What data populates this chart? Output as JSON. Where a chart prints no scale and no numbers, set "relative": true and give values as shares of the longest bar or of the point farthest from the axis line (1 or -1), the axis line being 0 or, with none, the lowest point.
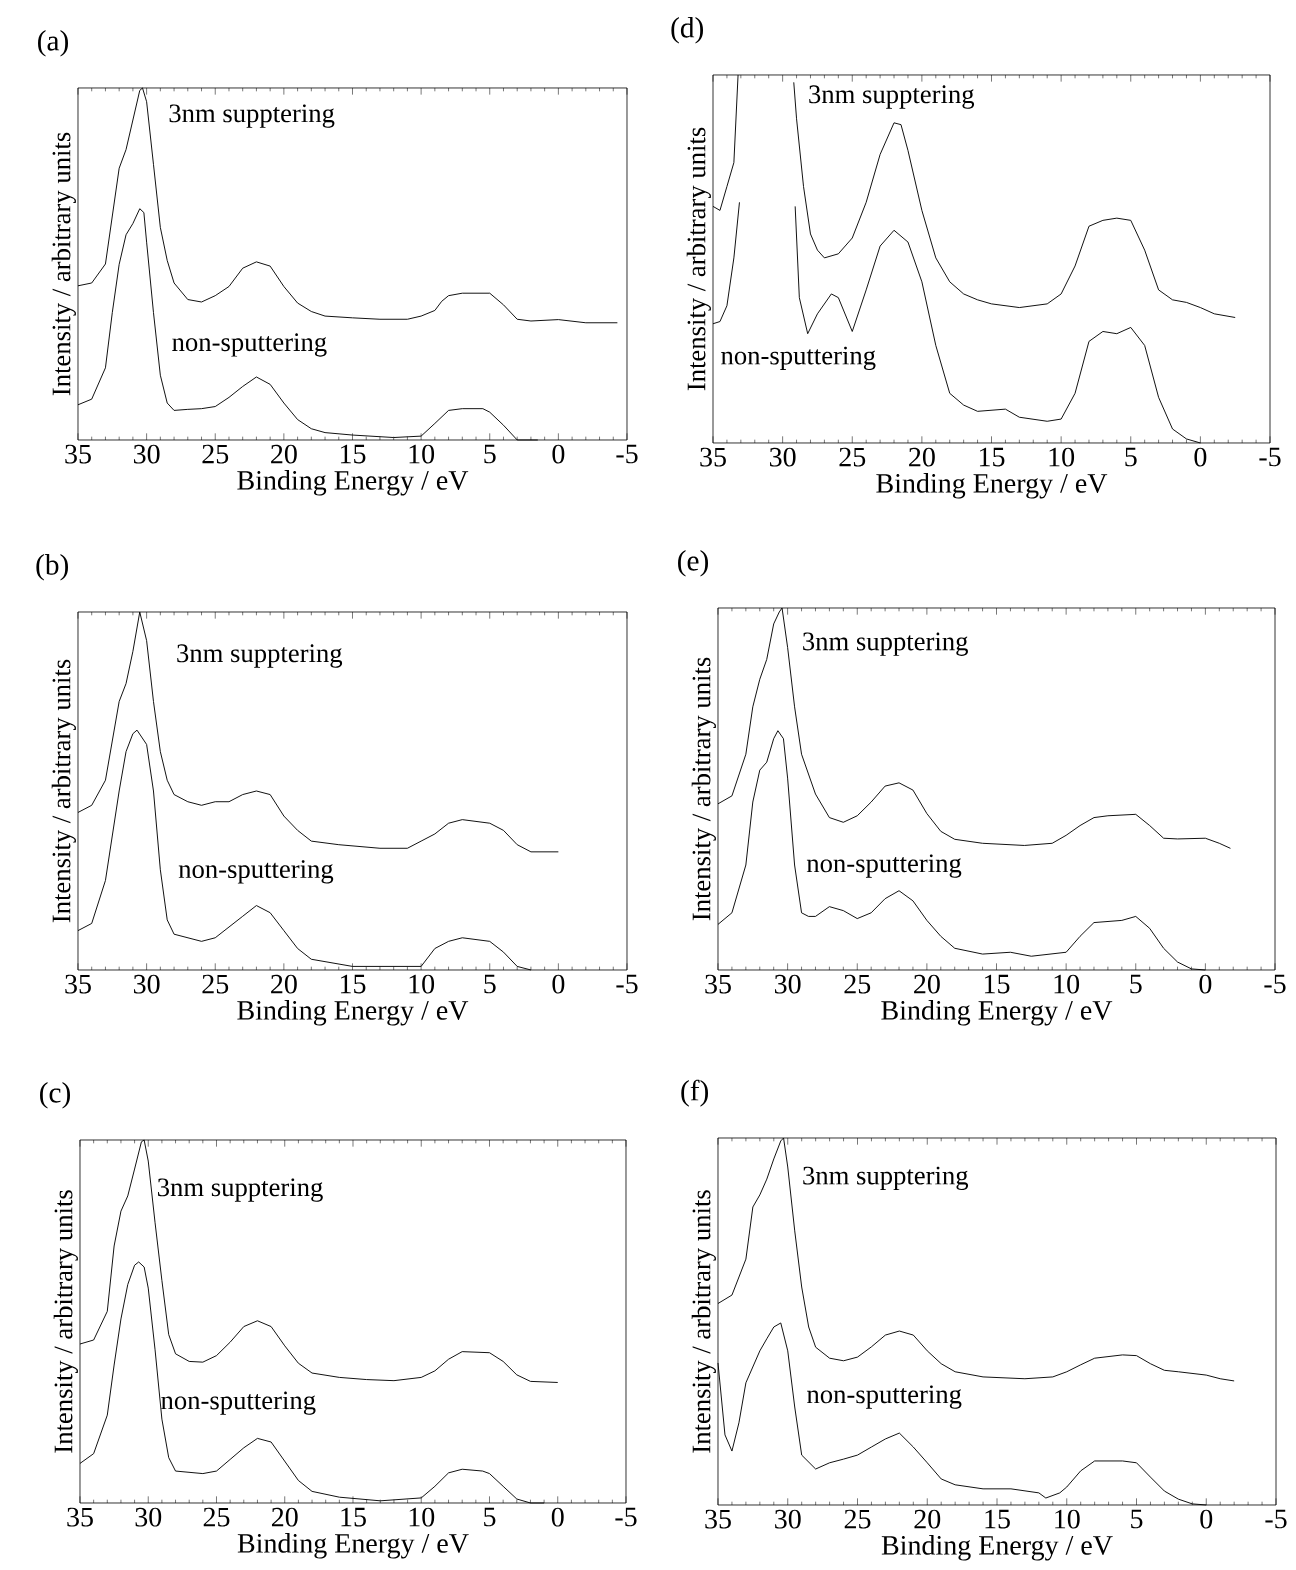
{
  "chart_data": [
    {
      "type": "line",
      "title": "(a)",
      "xlabel": "Binding Energy / eV",
      "ylabel": "Intensity / arbitrary units",
      "relative": true,
      "tick_labels": "x",
      "xlim": [
        35,
        -5
      ],
      "xticks": [
        35,
        30,
        25,
        20,
        15,
        10,
        5,
        0,
        -5
      ],
      "series": [
        {
          "name": "3nm supptering",
          "color": "#000000",
          "x": [
            35,
            34,
            33,
            32,
            31.5,
            31,
            30.5,
            30.3,
            30,
            29.5,
            29,
            28.5,
            28,
            27,
            26,
            25,
            24,
            23,
            22,
            21,
            20,
            19,
            18,
            17,
            15,
            13,
            11,
            10,
            9,
            8.5,
            8,
            7,
            5,
            4,
            3,
            2,
            0,
            -2,
            -4.3
          ],
          "values": [
            0.438,
            0.446,
            0.5,
            0.772,
            0.825,
            0.909,
            0.993,
            1.0,
            0.961,
            0.783,
            0.604,
            0.51,
            0.446,
            0.399,
            0.392,
            0.41,
            0.436,
            0.488,
            0.506,
            0.494,
            0.436,
            0.389,
            0.365,
            0.352,
            0.347,
            0.343,
            0.343,
            0.352,
            0.368,
            0.394,
            0.41,
            0.417,
            0.417,
            0.384,
            0.343,
            0.338,
            0.342,
            0.333,
            0.333
          ]
        },
        {
          "name": "non-sputtering",
          "color": "#000000",
          "x": [
            35,
            34,
            33,
            32.5,
            32,
            31.5,
            31,
            30.5,
            30.2,
            30,
            29.5,
            29,
            28.5,
            28,
            27,
            26,
            25,
            24,
            23,
            22,
            21,
            20,
            19,
            18,
            17,
            15,
            12,
            10,
            9,
            8,
            7,
            5.5,
            5,
            4,
            3,
            1.5
          ],
          "values": [
            0.1,
            0.116,
            0.205,
            0.362,
            0.499,
            0.583,
            0.615,
            0.657,
            0.646,
            0.562,
            0.362,
            0.184,
            0.105,
            0.084,
            0.087,
            0.089,
            0.095,
            0.121,
            0.152,
            0.179,
            0.158,
            0.105,
            0.058,
            0.032,
            0.021,
            0.014,
            0.007,
            0.011,
            0.047,
            0.084,
            0.089,
            0.089,
            0.079,
            0.042,
            0,
            0
          ]
        }
      ]
    },
    {
      "type": "line",
      "title": "(b)",
      "xlabel": "Binding Energy / eV",
      "ylabel": "Intensity / arbitrary units",
      "relative": true,
      "tick_labels": "x",
      "xlim": [
        35,
        -5
      ],
      "xticks": [
        35,
        30,
        25,
        20,
        15,
        10,
        5,
        0,
        -5
      ],
      "series": [
        {
          "name": "3nm supptering",
          "color": "#000000",
          "x": [
            35,
            34,
            33,
            32,
            31.5,
            31,
            30.5,
            30,
            29.5,
            29,
            28.5,
            28,
            27,
            26,
            25,
            24,
            23,
            22,
            21,
            20,
            19,
            18,
            16,
            13,
            11,
            10,
            9,
            8,
            7,
            5,
            4,
            3,
            2,
            0
          ],
          "values": [
            0.44,
            0.46,
            0.53,
            0.75,
            0.8,
            0.89,
            1.0,
            0.92,
            0.75,
            0.61,
            0.53,
            0.49,
            0.47,
            0.46,
            0.47,
            0.47,
            0.49,
            0.5,
            0.49,
            0.43,
            0.39,
            0.36,
            0.35,
            0.34,
            0.34,
            0.36,
            0.38,
            0.41,
            0.42,
            0.41,
            0.39,
            0.35,
            0.33,
            0.33
          ]
        },
        {
          "name": "non-sputtering",
          "color": "#000000",
          "x": [
            35,
            34,
            33,
            32,
            31.5,
            31,
            30.7,
            30,
            29.5,
            29,
            28.5,
            28,
            26,
            25,
            24,
            23,
            22,
            21,
            20,
            19,
            18,
            15,
            12,
            10,
            9,
            8,
            7,
            5,
            4,
            3,
            2
          ],
          "values": [
            0.11,
            0.13,
            0.25,
            0.5,
            0.61,
            0.66,
            0.67,
            0.63,
            0.5,
            0.28,
            0.14,
            0.1,
            0.08,
            0.09,
            0.12,
            0.15,
            0.18,
            0.16,
            0.11,
            0.06,
            0.03,
            0.01,
            0.01,
            0.01,
            0.06,
            0.08,
            0.09,
            0.08,
            0.05,
            0.01,
            0
          ]
        }
      ]
    },
    {
      "type": "line",
      "title": "(c)",
      "xlabel": "Binding Energy / eV",
      "ylabel": "Intensity / arbitrary units",
      "relative": true,
      "tick_labels": "x",
      "xlim": [
        35,
        -5
      ],
      "xticks": [
        35,
        30,
        25,
        20,
        15,
        10,
        5,
        0,
        -5
      ],
      "series": [
        {
          "name": "3nm supptering",
          "color": "#000000",
          "x": [
            35,
            34,
            33,
            32.5,
            32,
            31.5,
            31,
            30.5,
            30.3,
            30,
            29.5,
            29,
            28.5,
            28,
            27,
            26,
            25,
            24,
            23,
            22,
            21,
            20,
            19,
            18,
            16,
            14,
            12,
            10,
            9,
            8,
            7,
            5,
            4,
            3,
            2,
            0
          ],
          "values": [
            0.438,
            0.449,
            0.528,
            0.708,
            0.804,
            0.846,
            0.92,
            0.995,
            1.0,
            0.942,
            0.772,
            0.613,
            0.464,
            0.411,
            0.39,
            0.388,
            0.406,
            0.443,
            0.486,
            0.502,
            0.486,
            0.433,
            0.385,
            0.358,
            0.346,
            0.34,
            0.337,
            0.346,
            0.364,
            0.396,
            0.417,
            0.414,
            0.39,
            0.353,
            0.335,
            0.332
          ]
        },
        {
          "name": "non-sputtering",
          "color": "#000000",
          "x": [
            35,
            34,
            33,
            32.5,
            32,
            31.5,
            31,
            30.7,
            30.3,
            30,
            29.5,
            29,
            28.5,
            28,
            26,
            25,
            24,
            23,
            22,
            21,
            20,
            19,
            18,
            16,
            13,
            10,
            9,
            8,
            7,
            5.5,
            5,
            4,
            3,
            2,
            1
          ],
          "values": [
            0.109,
            0.136,
            0.242,
            0.38,
            0.507,
            0.602,
            0.655,
            0.664,
            0.65,
            0.592,
            0.422,
            0.231,
            0.125,
            0.088,
            0.081,
            0.088,
            0.12,
            0.152,
            0.178,
            0.168,
            0.115,
            0.062,
            0.032,
            0.016,
            0.006,
            0.014,
            0.046,
            0.083,
            0.093,
            0.088,
            0.081,
            0.046,
            0.011,
            0,
            0
          ]
        }
      ]
    },
    {
      "type": "line",
      "title": "(d)",
      "xlabel": "Binding Energy / eV",
      "ylabel": "Intensity / arbitrary units",
      "relative": true,
      "tick_labels": "x",
      "xlim": [
        35,
        -5
      ],
      "xticks": [
        35,
        30,
        25,
        20,
        15,
        10,
        5,
        0,
        -5
      ],
      "series": [
        {
          "name": "3nm supptering",
          "color": "#000000",
          "x": [
            35,
            34.5,
            34,
            33.5,
            33.2,
            31,
            29.2,
            29,
            28.5,
            28,
            27.5,
            27,
            26,
            25,
            24,
            23,
            22,
            21.5,
            21,
            20,
            19,
            18,
            17,
            16,
            15,
            13,
            11,
            10,
            9,
            8,
            7,
            6,
            5,
            4,
            3,
            2,
            1,
            0,
            -1,
            -2.5
          ],
          "values": [
            0.643,
            0.632,
            0.697,
            0.762,
            1.0,
            null,
            0.98,
            0.881,
            0.697,
            0.568,
            0.524,
            0.503,
            0.514,
            0.557,
            0.654,
            0.784,
            0.87,
            0.865,
            0.795,
            0.632,
            0.503,
            0.438,
            0.405,
            0.389,
            0.378,
            0.368,
            0.378,
            0.405,
            0.481,
            0.589,
            0.605,
            0.611,
            0.605,
            0.524,
            0.416,
            0.389,
            0.382,
            0.368,
            0.351,
            0.341
          ]
        },
        {
          "name": "non-sputtering",
          "color": "#000000",
          "x": [
            35,
            34.5,
            34,
            33.5,
            33.1,
            31,
            29.1,
            28.8,
            28.2,
            27.5,
            26.5,
            26,
            25,
            24,
            23,
            22,
            21,
            20,
            19,
            18,
            17,
            16,
            14,
            13,
            11,
            10,
            9,
            8,
            7,
            6,
            5,
            4,
            3,
            2,
            1,
            0
          ],
          "values": [
            0.324,
            0.33,
            0.373,
            0.503,
            0.654,
            null,
            0.643,
            0.395,
            0.297,
            0.351,
            0.405,
            0.395,
            0.303,
            0.416,
            0.535,
            0.578,
            0.546,
            0.438,
            0.265,
            0.135,
            0.103,
            0.086,
            0.092,
            0.07,
            0.059,
            0.065,
            0.135,
            0.276,
            0.303,
            0.297,
            0.314,
            0.265,
            0.124,
            0.038,
            0.011,
            0
          ]
        }
      ]
    },
    {
      "type": "line",
      "title": "(e)",
      "xlabel": "Binding Energy / eV",
      "ylabel": "Intensity / arbitrary units",
      "relative": true,
      "tick_labels": "x",
      "xlim": [
        35,
        -5
      ],
      "xticks": [
        35,
        30,
        25,
        20,
        15,
        10,
        5,
        0,
        -5
      ],
      "series": [
        {
          "name": "3nm supptering",
          "color": "#000000",
          "x": [
            35,
            34,
            33,
            32.5,
            32,
            31.5,
            31,
            30.6,
            30.4,
            30,
            29.5,
            29,
            28,
            27,
            26,
            25,
            24,
            23,
            22,
            21,
            20,
            19,
            18,
            16,
            13,
            11,
            10,
            9,
            8,
            7,
            5,
            4,
            3,
            2,
            0,
            -1,
            -1.8
          ],
          "values": [
            0.459,
            0.481,
            0.596,
            0.727,
            0.803,
            0.858,
            0.956,
            0.989,
            1.0,
            0.891,
            0.727,
            0.596,
            0.486,
            0.421,
            0.408,
            0.426,
            0.464,
            0.508,
            0.517,
            0.497,
            0.432,
            0.383,
            0.361,
            0.35,
            0.344,
            0.35,
            0.372,
            0.399,
            0.421,
            0.426,
            0.43,
            0.399,
            0.364,
            0.362,
            0.364,
            0.35,
            0.336
          ]
        },
        {
          "name": "non-sputtering",
          "color": "#000000",
          "x": [
            35,
            34,
            33,
            32.5,
            32,
            31.5,
            31,
            30.7,
            30.3,
            30,
            29.5,
            29,
            28.5,
            28,
            27,
            26,
            25,
            24,
            23,
            22,
            21,
            20,
            19,
            18,
            16,
            14,
            12.5,
            10,
            9,
            8,
            6,
            5,
            4,
            3,
            2,
            1,
            0
          ],
          "values": [
            0.126,
            0.158,
            0.29,
            0.464,
            0.552,
            0.574,
            0.639,
            0.661,
            0.639,
            0.53,
            0.29,
            0.158,
            0.148,
            0.148,
            0.175,
            0.164,
            0.142,
            0.158,
            0.197,
            0.219,
            0.191,
            0.137,
            0.093,
            0.06,
            0.044,
            0.049,
            0.038,
            0.049,
            0.093,
            0.131,
            0.137,
            0.148,
            0.115,
            0.06,
            0.022,
            0.003,
            0
          ]
        }
      ]
    },
    {
      "type": "line",
      "title": "(f)",
      "xlabel": "Binding Energy / eV",
      "ylabel": "Intensity / arbitrary units",
      "relative": true,
      "tick_labels": "x",
      "xlim": [
        35,
        -5
      ],
      "xticks": [
        35,
        30,
        25,
        20,
        15,
        10,
        5,
        0,
        -5
      ],
      "series": [
        {
          "name": "3nm supptering",
          "color": "#000000",
          "x": [
            35,
            34,
            33,
            32.5,
            32,
            31.5,
            31,
            30.5,
            30.3,
            30,
            29.5,
            29,
            28.5,
            28,
            27,
            26,
            25,
            24,
            23,
            22,
            21,
            20,
            19,
            18,
            16,
            13,
            11,
            10,
            9,
            8,
            6,
            5,
            4,
            3,
            2,
            0,
            -1,
            -2
          ],
          "values": [
            0.549,
            0.572,
            0.67,
            0.812,
            0.845,
            0.888,
            0.943,
            0.992,
            1.0,
            0.921,
            0.747,
            0.594,
            0.485,
            0.43,
            0.4,
            0.393,
            0.403,
            0.431,
            0.463,
            0.474,
            0.463,
            0.42,
            0.385,
            0.363,
            0.349,
            0.344,
            0.349,
            0.363,
            0.382,
            0.4,
            0.409,
            0.407,
            0.385,
            0.367,
            0.363,
            0.354,
            0.344,
            0.338
          ]
        },
        {
          "name": "non-sputtering",
          "color": "#000000",
          "x": [
            35,
            34.5,
            34,
            33.5,
            33,
            32,
            31.5,
            31,
            30.5,
            30,
            29.5,
            29,
            28,
            27,
            26,
            25,
            24,
            23,
            22,
            21,
            20,
            19,
            18,
            16,
            14,
            12,
            11.5,
            10.5,
            10,
            9,
            8,
            6,
            5,
            4,
            3,
            2,
            1,
            0
          ],
          "values": [
            0.387,
            0.191,
            0.147,
            0.224,
            0.333,
            0.42,
            0.453,
            0.485,
            0.496,
            0.42,
            0.267,
            0.136,
            0.098,
            0.115,
            0.125,
            0.136,
            0.158,
            0.18,
            0.196,
            0.158,
            0.115,
            0.071,
            0.055,
            0.044,
            0.044,
            0.033,
            0.019,
            0.033,
            0.049,
            0.093,
            0.12,
            0.12,
            0.115,
            0.076,
            0.038,
            0.016,
            0.003,
            0
          ]
        }
      ]
    }
  ]
}
